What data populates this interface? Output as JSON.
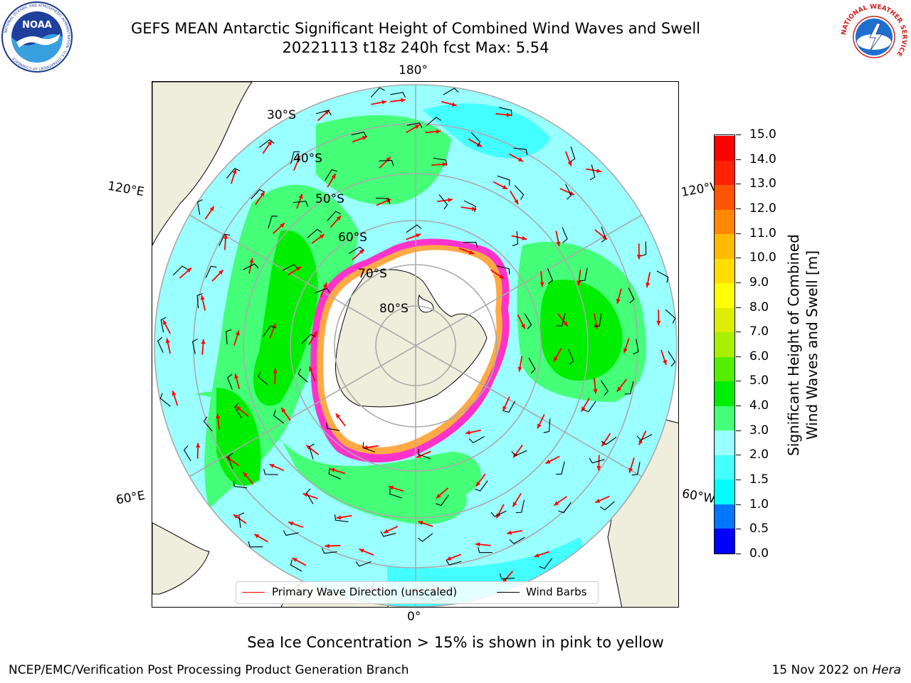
{
  "header": {
    "title_line1": "GEFS MEAN Antarctic Significant Height of Combined Wind Waves and Swell",
    "title_line2": "20221113 t18z 240h fcst   Max: 5.54"
  },
  "logos": {
    "noaa_text": "NOAA",
    "noaa_ring_text": "NATIONAL OCEANIC AND ATMOSPHERIC ADMINISTRATION · U.S. DEPARTMENT OF COMMERCE",
    "nws_ring_text": "NATIONAL WEATHER SERVICE"
  },
  "map": {
    "longitude_labels": {
      "top": "180°",
      "bottom": "0°",
      "upper_left": "120°E",
      "upper_right": "120°W",
      "lower_left": "60°E",
      "lower_right": "60°W"
    },
    "latitude_labels": [
      "30°S",
      "40°S",
      "50°S",
      "60°S",
      "70°S",
      "80°S"
    ],
    "projection": "south polar stereographic",
    "colors": {
      "land": "#efeddc",
      "ocean_base": "#99ffff",
      "ice_edge": "#ff33cc",
      "arrow": "#ff0000",
      "barb": "#000000"
    }
  },
  "colorbar": {
    "label_line1": "Significant Height of Combined",
    "label_line2": "Wind Waves and Swell [m]",
    "ticks": [
      "0.0",
      "0.5",
      "1.0",
      "1.5",
      "2.0",
      "3.0",
      "4.0",
      "5.0",
      "6.0",
      "7.0",
      "8.0",
      "9.0",
      "10.0",
      "11.0",
      "12.0",
      "13.0",
      "14.0",
      "15.0"
    ],
    "colors": [
      "#0000ff",
      "#0077ff",
      "#00ffff",
      "#44ffff",
      "#99ffff",
      "#44ff77",
      "#00ee00",
      "#55ee00",
      "#aaee00",
      "#ddee00",
      "#ffff00",
      "#ffdd00",
      "#ffbb00",
      "#ff8800",
      "#ff5500",
      "#ff2200",
      "#ff0000"
    ]
  },
  "legend": {
    "primary_wave": "Primary Wave Direction (unscaled)",
    "wind_barbs": "Wind Barbs",
    "primary_wave_color": "#ff0000",
    "wind_barbs_color": "#000000"
  },
  "footer": {
    "note": "Sea Ice Concentration > 15% is shown in pink to yellow",
    "left": "NCEP/EMC/Verification Post Processing Product Generation Branch",
    "right_date": "15 Nov 2022 on ",
    "right_host": "Hera"
  }
}
